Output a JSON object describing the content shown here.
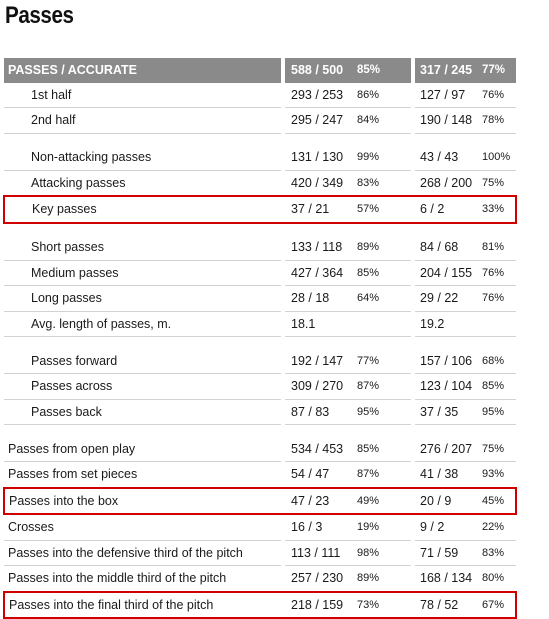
{
  "title": "Passes",
  "header": {
    "label": "PASSES / ACCURATE",
    "team1_value": "588 / 500",
    "team1_pct": "85%",
    "team2_value": "317 / 245",
    "team2_pct": "77%"
  },
  "rows": [
    {
      "label": "1st half",
      "indent": true,
      "v1": "293 / 253",
      "p1": "86%",
      "v2": "127 / 97",
      "p2": "76%"
    },
    {
      "label": "2nd half",
      "indent": true,
      "v1": "295 / 247",
      "p1": "84%",
      "v2": "190 / 148",
      "p2": "78%"
    },
    {
      "spacer": true
    },
    {
      "label": "Non-attacking passes",
      "indent": true,
      "v1": "131 / 130",
      "p1": "99%",
      "v2": "43 / 43",
      "p2": "100%"
    },
    {
      "label": "Attacking passes",
      "indent": true,
      "v1": "420 / 349",
      "p1": "83%",
      "v2": "268 / 200",
      "p2": "75%"
    },
    {
      "label": "Key passes",
      "indent": true,
      "highlight": true,
      "v1": "37 / 21",
      "p1": "57%",
      "v2": "6 / 2",
      "p2": "33%"
    },
    {
      "spacer": true
    },
    {
      "label": "Short passes",
      "indent": true,
      "v1": "133 / 118",
      "p1": "89%",
      "v2": "84 / 68",
      "p2": "81%"
    },
    {
      "label": "Medium passes",
      "indent": true,
      "v1": "427 / 364",
      "p1": "85%",
      "v2": "204 / 155",
      "p2": "76%"
    },
    {
      "label": "Long passes",
      "indent": true,
      "v1": "28 / 18",
      "p1": "64%",
      "v2": "29 / 22",
      "p2": "76%"
    },
    {
      "label": "Avg. length of passes, m.",
      "indent": true,
      "v1": "18.1",
      "p1": "",
      "v2": "19.2",
      "p2": ""
    },
    {
      "spacer": true
    },
    {
      "label": "Passes forward",
      "indent": true,
      "v1": "192 / 147",
      "p1": "77%",
      "v2": "157 / 106",
      "p2": "68%"
    },
    {
      "label": "Passes across",
      "indent": true,
      "v1": "309 / 270",
      "p1": "87%",
      "v2": "123 / 104",
      "p2": "85%"
    },
    {
      "label": "Passes back",
      "indent": true,
      "v1": "87 / 83",
      "p1": "95%",
      "v2": "37 / 35",
      "p2": "95%"
    },
    {
      "spacer": true
    },
    {
      "label": "Passes from open play",
      "indent": false,
      "v1": "534 / 453",
      "p1": "85%",
      "v2": "276 / 207",
      "p2": "75%"
    },
    {
      "label": "Passes from set pieces",
      "indent": false,
      "v1": "54 / 47",
      "p1": "87%",
      "v2": "41 / 38",
      "p2": "93%"
    },
    {
      "label": "Passes into the box",
      "indent": false,
      "highlight": true,
      "v1": "47 / 23",
      "p1": "49%",
      "v2": "20 / 9",
      "p2": "45%"
    },
    {
      "label": "Crosses",
      "indent": false,
      "v1": "16 / 3",
      "p1": "19%",
      "v2": "9 / 2",
      "p2": "22%"
    },
    {
      "label": "Passes into the defensive third of the pitch",
      "indent": false,
      "v1": "113 / 111",
      "p1": "98%",
      "v2": "71 / 59",
      "p2": "83%"
    },
    {
      "label": "Passes into the middle third of the pitch",
      "indent": false,
      "v1": "257 / 230",
      "p1": "89%",
      "v2": "168 / 134",
      "p2": "80%"
    },
    {
      "label": "Passes into the final third of the pitch",
      "indent": false,
      "highlight": true,
      "v1": "218 / 159",
      "p1": "73%",
      "v2": "78 / 52",
      "p2": "67%"
    }
  ],
  "colors": {
    "header_bg": "#8a8a8a",
    "highlight_border": "#d00000",
    "row_divider": "#d2d2d2"
  }
}
